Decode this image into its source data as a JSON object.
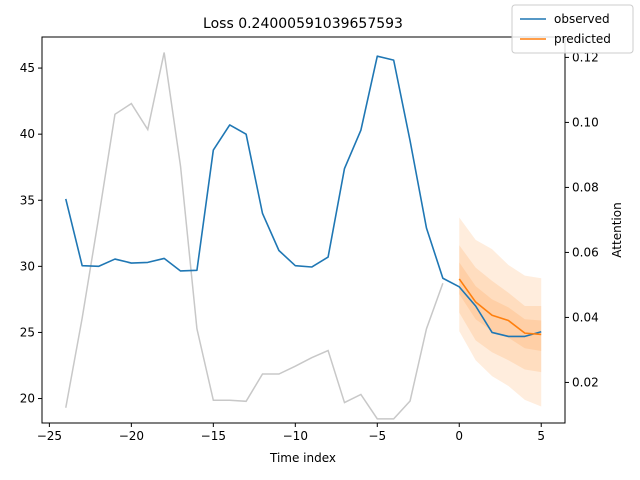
{
  "chart_data": {
    "type": "line",
    "title": "Loss 0.24000591039657593",
    "xlabel": "Time index",
    "ylabel": "",
    "y2label": "Attention",
    "xlim": [
      -25.45,
      6.45
    ],
    "ylim": [
      18.15,
      47.35
    ],
    "y2lim": [
      0.00752,
      0.12628
    ],
    "xticks": [
      -25,
      -20,
      -15,
      -10,
      -5,
      0,
      5
    ],
    "yticks": [
      20,
      25,
      30,
      35,
      40,
      45
    ],
    "y2ticks": [
      0.02,
      0.04,
      0.06,
      0.08,
      0.1,
      0.12
    ],
    "y2tick_labels": [
      "0.02",
      "0.04",
      "0.06",
      "0.08",
      "0.10",
      "0.12"
    ],
    "legend_position": "top-right",
    "colors": {
      "observed": "#1f77b4",
      "predicted": "#ff7f0e",
      "attention": "#c8c8c8",
      "quantile_band": "#ff7f0e"
    },
    "series": [
      {
        "name": "observed",
        "axis": "left",
        "x": [
          -24,
          -23,
          -22,
          -21,
          -20,
          -19,
          -18,
          -17,
          -16,
          -15,
          -14,
          -13,
          -12,
          -11,
          -10,
          -9,
          -8,
          -7,
          -6,
          -5,
          -4,
          -3,
          -2,
          -1,
          0,
          1,
          2,
          3,
          4,
          5
        ],
        "y": [
          35.1,
          30.05,
          30.0,
          30.55,
          30.25,
          30.3,
          30.6,
          29.65,
          29.7,
          38.8,
          40.7,
          40.0,
          34.0,
          31.2,
          30.05,
          29.95,
          30.7,
          37.4,
          40.3,
          45.9,
          45.6,
          39.5,
          32.9,
          29.1,
          28.45,
          27.0,
          25.0,
          24.7,
          24.7,
          25.05
        ]
      },
      {
        "name": "predicted",
        "axis": "left",
        "x": [
          0,
          1,
          2,
          3,
          4,
          5
        ],
        "y": [
          29.05,
          27.3,
          26.3,
          25.9,
          24.95,
          24.85
        ]
      },
      {
        "name": "attention",
        "axis": "right",
        "x": [
          -24,
          -23,
          -22,
          -21,
          -20,
          -19,
          -18,
          -17,
          -16,
          -15,
          -14,
          -13,
          -12,
          -11,
          -10,
          -9,
          -8,
          -7,
          -6,
          -5,
          -4,
          -3,
          -2,
          -1
        ],
        "y": [
          0.0122,
          0.0398,
          0.0705,
          0.1025,
          0.1058,
          0.0978,
          0.1215,
          0.0865,
          0.0365,
          0.0145,
          0.0145,
          0.0142,
          0.0226,
          0.0226,
          0.025,
          0.0276,
          0.0298,
          0.0138,
          0.0163,
          0.0088,
          0.0088,
          0.0143,
          0.0365,
          0.0505
        ]
      }
    ],
    "quantile_bands": [
      {
        "x": [
          0,
          1,
          2,
          3,
          4,
          5
        ],
        "upper": [
          33.7,
          32.0,
          31.3,
          30.1,
          29.3,
          29.1
        ],
        "lower": [
          25.1,
          22.9,
          21.7,
          20.95,
          19.9,
          19.4
        ]
      },
      {
        "x": [
          0,
          1,
          2,
          3,
          4,
          5
        ],
        "upper": [
          31.6,
          29.9,
          28.9,
          28.0,
          27.0,
          27.0
        ],
        "lower": [
          26.5,
          24.4,
          23.5,
          22.9,
          22.2,
          22.0
        ]
      },
      {
        "x": [
          0,
          1,
          2,
          3,
          4,
          5
        ],
        "upper": [
          30.3,
          28.5,
          27.5,
          26.9,
          26.0,
          25.9
        ],
        "lower": [
          27.9,
          26.0,
          25.1,
          24.6,
          23.8,
          23.6
        ]
      }
    ]
  }
}
